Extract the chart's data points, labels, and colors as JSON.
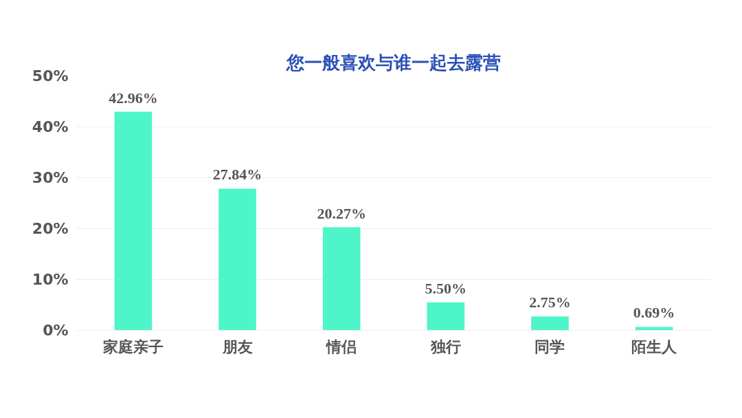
{
  "chart_data": {
    "type": "bar",
    "title": "您一般喜欢与谁一起去露营",
    "categories": [
      "家庭亲子",
      "朋友",
      "情侣",
      "独行",
      "同学",
      "陌生人"
    ],
    "values": [
      42.96,
      27.84,
      20.27,
      5.5,
      2.75,
      0.69
    ],
    "value_labels": [
      "42.96%",
      "27.84%",
      "20.27%",
      "5.50%",
      "2.75%",
      "0.69%"
    ],
    "color": "#4ef5c8",
    "ylim": [
      0,
      50
    ],
    "yticks": [
      {
        "value": 0,
        "label": "0%"
      },
      {
        "value": 10,
        "label": "10%"
      },
      {
        "value": 20,
        "label": "20%"
      },
      {
        "value": 30,
        "label": "30%"
      },
      {
        "value": 40,
        "label": "40%"
      },
      {
        "value": 50,
        "label": "50%"
      }
    ],
    "grid": "y"
  }
}
